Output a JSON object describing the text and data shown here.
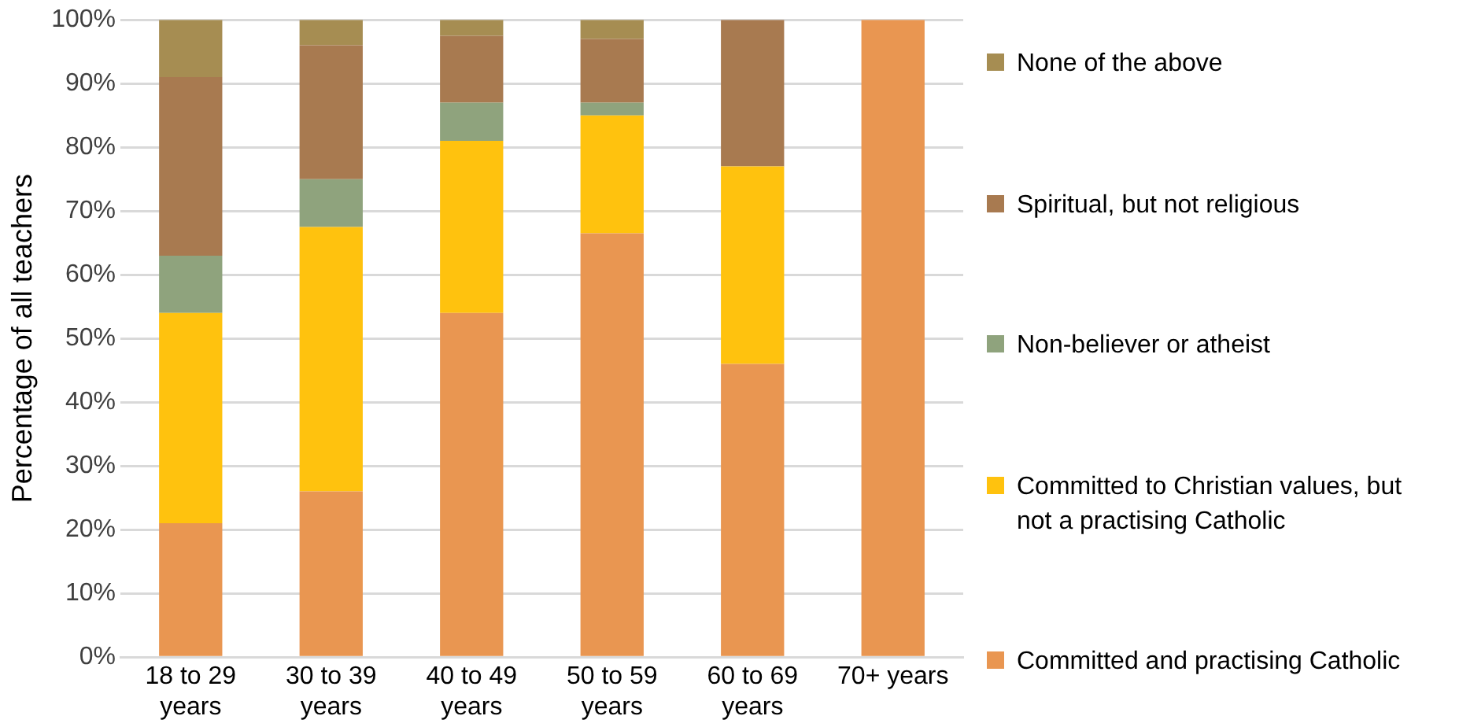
{
  "chart_data": {
    "type": "bar",
    "stacked": true,
    "ylabel": "Percentage of all teachers",
    "categories": [
      "18 to 29 years",
      "30 to 39 years",
      "40 to 49 years",
      "50 to 59 years",
      "60 to 69 years",
      "70+ years"
    ],
    "series": [
      {
        "name": "Committed and practising Catholic",
        "color": "#e99651",
        "values": [
          21,
          26,
          54,
          66.5,
          46,
          100
        ]
      },
      {
        "name": "Committed to Christian values, but not a practising Catholic",
        "color": "#ffc20e",
        "values": [
          33,
          41.5,
          27,
          18.5,
          31,
          0
        ]
      },
      {
        "name": "Non-believer or atheist",
        "color": "#8fa37d",
        "values": [
          9,
          7.5,
          6,
          2,
          0,
          0
        ]
      },
      {
        "name": "Spiritual, but not religious",
        "color": "#a87a50",
        "values": [
          28,
          21,
          10.5,
          10,
          23,
          0
        ]
      },
      {
        "name": "None of the above",
        "color": "#a68d52",
        "values": [
          9,
          4,
          2.5,
          3,
          0,
          0
        ]
      }
    ],
    "ylim": [
      0,
      100
    ],
    "yticks": [
      {
        "value": 0,
        "label": "0%"
      },
      {
        "value": 10,
        "label": "10%"
      },
      {
        "value": 20,
        "label": "20%"
      },
      {
        "value": 30,
        "label": "30%"
      },
      {
        "value": 40,
        "label": "40%"
      },
      {
        "value": 50,
        "label": "50%"
      },
      {
        "value": 60,
        "label": "60%"
      },
      {
        "value": 70,
        "label": "70%"
      },
      {
        "value": 80,
        "label": "80%"
      },
      {
        "value": 90,
        "label": "90%"
      },
      {
        "value": 100,
        "label": "100%"
      }
    ],
    "grid": "y",
    "legend": "right"
  }
}
